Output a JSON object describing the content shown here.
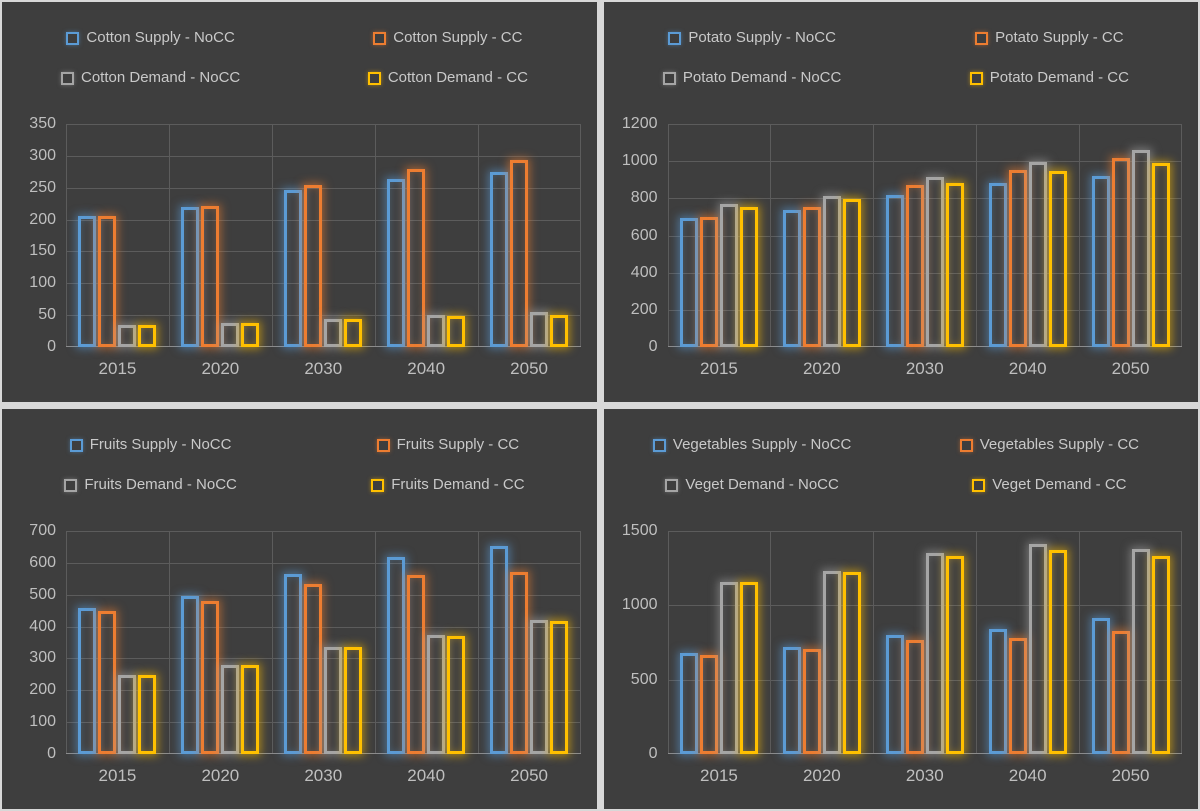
{
  "series_colors": {
    "blue": "#5B9BD5",
    "orange": "#ED7D31",
    "gray": "#A5A5A5",
    "yellow": "#FFC000"
  },
  "panel_background": "#3E3E3E",
  "divider_color": "#D8D8D8",
  "gridline_color": "#5C5C5C",
  "text_color": "#C9C9C9",
  "chart_data": [
    {
      "id": "cotton",
      "type": "bar",
      "legend_position": "top",
      "grid": true,
      "categories": [
        "2015",
        "2020",
        "2030",
        "2040",
        "2050"
      ],
      "yticks": [
        0,
        50,
        100,
        150,
        200,
        250,
        300,
        350
      ],
      "ylim": [
        0,
        350
      ],
      "series": [
        {
          "name": "Cotton Supply - NoCC",
          "color": "blue",
          "values": [
            205,
            220,
            246,
            263,
            275
          ]
        },
        {
          "name": "Cotton Supply - CC",
          "color": "orange",
          "values": [
            205,
            222,
            255,
            280,
            293
          ]
        },
        {
          "name": "Cotton Demand - NoCC",
          "color": "gray",
          "values": [
            34,
            38,
            44,
            50,
            55
          ]
        },
        {
          "name": "Cotton Demand - CC",
          "color": "yellow",
          "values": [
            34,
            38,
            44,
            48,
            51
          ]
        }
      ]
    },
    {
      "id": "potato",
      "type": "bar",
      "legend_position": "top",
      "grid": true,
      "categories": [
        "2015",
        "2020",
        "2030",
        "2040",
        "2050"
      ],
      "yticks": [
        0,
        200,
        400,
        600,
        800,
        1000,
        1200
      ],
      "ylim": [
        0,
        1200
      ],
      "series": [
        {
          "name": "Potato Supply - NoCC",
          "color": "blue",
          "values": [
            695,
            735,
            820,
            880,
            920
          ]
        },
        {
          "name": "Potato Supply - CC",
          "color": "orange",
          "values": [
            700,
            755,
            870,
            955,
            1015
          ]
        },
        {
          "name": "Potato Demand - NoCC",
          "color": "gray",
          "values": [
            770,
            815,
            915,
            995,
            1060
          ]
        },
        {
          "name": "Potato Demand - CC",
          "color": "yellow",
          "values": [
            755,
            795,
            880,
            945,
            990
          ]
        }
      ]
    },
    {
      "id": "fruits",
      "type": "bar",
      "legend_position": "top",
      "grid": true,
      "categories": [
        "2015",
        "2020",
        "2030",
        "2040",
        "2050"
      ],
      "yticks": [
        0,
        100,
        200,
        300,
        400,
        500,
        600,
        700
      ],
      "ylim": [
        0,
        700
      ],
      "series": [
        {
          "name": "Fruits Supply - NoCC",
          "color": "blue",
          "values": [
            458,
            495,
            565,
            618,
            652
          ]
        },
        {
          "name": "Fruits Supply - CC",
          "color": "orange",
          "values": [
            448,
            481,
            533,
            562,
            571
          ]
        },
        {
          "name": "Fruits Demand - NoCC",
          "color": "gray",
          "values": [
            247,
            278,
            337,
            373,
            421
          ]
        },
        {
          "name": "Fruits Demand - CC",
          "color": "yellow",
          "values": [
            247,
            278,
            336,
            371,
            419
          ]
        }
      ]
    },
    {
      "id": "vegetables",
      "type": "bar",
      "legend_position": "top",
      "grid": true,
      "categories": [
        "2015",
        "2020",
        "2030",
        "2040",
        "2050"
      ],
      "yticks": [
        0,
        500,
        1000,
        1500
      ],
      "ylim": [
        0,
        1500
      ],
      "series": [
        {
          "name": "Vegetables Supply - NoCC",
          "color": "blue",
          "values": [
            680,
            720,
            800,
            840,
            915
          ]
        },
        {
          "name": "Vegetables Supply - CC",
          "color": "orange",
          "values": [
            668,
            705,
            770,
            780,
            830
          ]
        },
        {
          "name": "Veget Demand - NoCC",
          "color": "gray",
          "values": [
            1160,
            1230,
            1355,
            1410,
            1378
          ]
        },
        {
          "name": "Veget Demand - CC",
          "color": "yellow",
          "values": [
            1155,
            1225,
            1330,
            1375,
            1335
          ]
        }
      ]
    }
  ]
}
